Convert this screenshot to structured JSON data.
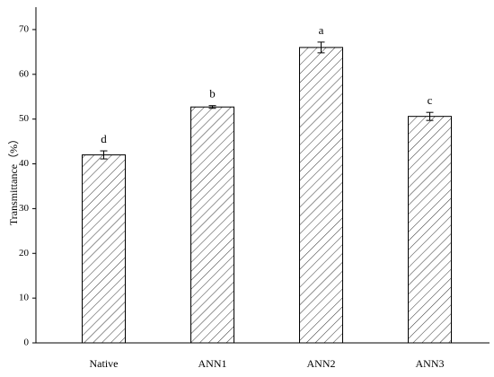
{
  "chart_data": {
    "type": "bar",
    "ylabel": "Transmittance（%）",
    "categories": [
      "Native",
      "ANN1",
      "ANN2",
      "ANN3"
    ],
    "values": [
      42,
      52.7,
      66,
      50.6
    ],
    "errors": [
      0.9,
      0.3,
      1.2,
      0.9
    ],
    "annotations": [
      "d",
      "b",
      "a",
      "c"
    ],
    "color": "#000000",
    "ylim": [
      0,
      75
    ],
    "yticks": [
      0,
      10,
      20,
      30,
      40,
      50,
      60,
      70
    ],
    "grid": false
  }
}
